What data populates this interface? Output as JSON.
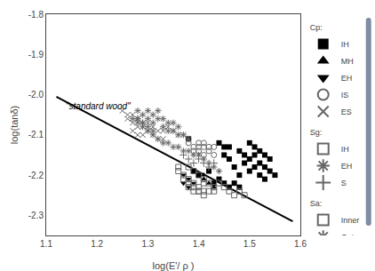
{
  "chart_data": {
    "type": "scatter",
    "xlabel": "log(E'/ ρ )",
    "ylabel": "log(tanδ)",
    "xlim": [
      1.1,
      1.6
    ],
    "ylim": [
      -2.35,
      -1.8
    ],
    "xticks": [
      1.1,
      1.2,
      1.3,
      1.4,
      1.5,
      1.6
    ],
    "yticks": [
      {
        "value": -2.3,
        "label": "-2.3"
      },
      {
        "value": -2.2,
        "label": "-2.2"
      },
      {
        "value": -2.1,
        "label": "-2.1"
      },
      {
        "value": -2.0,
        "label": "-2.0"
      },
      {
        "value": -1.9,
        "label": "-1.9"
      },
      {
        "value": -1.8,
        "label": "-1.8"
      }
    ],
    "grid": false,
    "legend": "right",
    "annotations": [
      {
        "text": "\"standard wood\"",
        "x": 1.135,
        "y": -2.045
      }
    ],
    "series": [
      {
        "type": "line",
        "color": "#000000",
        "line_style": "solid",
        "x": [
          1.12,
          1.585
        ],
        "values": [
          -2.005,
          -2.315
        ]
      },
      {
        "group": "Cp:",
        "name": "IH",
        "type": "scatter",
        "marker": "square",
        "color": "#000000",
        "x": [
          1.44,
          1.45,
          1.45,
          1.46,
          1.46,
          1.47,
          1.48,
          1.48,
          1.49,
          1.49,
          1.5,
          1.5,
          1.5,
          1.51,
          1.51,
          1.51,
          1.52,
          1.52,
          1.52,
          1.53,
          1.53,
          1.53,
          1.54,
          1.54,
          1.55,
          1.42,
          1.43,
          1.44,
          1.45,
          1.46,
          1.47,
          1.48,
          1.38,
          1.39,
          1.4
        ],
        "values": [
          -2.12,
          -2.13,
          -2.15,
          -2.13,
          -2.16,
          -2.18,
          -2.14,
          -2.2,
          -2.15,
          -2.17,
          -2.12,
          -2.16,
          -2.19,
          -2.13,
          -2.15,
          -2.18,
          -2.14,
          -2.17,
          -2.2,
          -2.15,
          -2.18,
          -2.21,
          -2.16,
          -2.19,
          -2.2,
          -2.19,
          -2.22,
          -2.21,
          -2.22,
          -2.23,
          -2.22,
          -2.23,
          -2.11,
          -2.19,
          -2.2
        ]
      },
      {
        "group": "Cp:",
        "name": "MH",
        "type": "scatter",
        "marker": "triangle-up",
        "color": "#000000",
        "x": [
          1.4,
          1.41,
          1.42,
          1.43,
          1.41
        ],
        "values": [
          -2.2,
          -2.21,
          -2.22,
          -2.23,
          -2.2
        ]
      },
      {
        "group": "Cp:",
        "name": "EH",
        "type": "scatter",
        "marker": "triangle-down",
        "color": "#000000",
        "x": [
          1.37,
          1.38,
          1.37,
          1.38,
          1.39
        ],
        "values": [
          -2.2,
          -2.21,
          -2.22,
          -2.23,
          -2.22
        ]
      },
      {
        "group": "Cp:",
        "name": "IS",
        "type": "scatter",
        "marker": "circle-open",
        "color": "#666666",
        "x": [
          1.38,
          1.39,
          1.39,
          1.4,
          1.4,
          1.4,
          1.41,
          1.41,
          1.41,
          1.42,
          1.42,
          1.43,
          1.43
        ],
        "values": [
          -2.12,
          -2.13,
          -2.14,
          -2.12,
          -2.13,
          -2.14,
          -2.12,
          -2.13,
          -2.15,
          -2.13,
          -2.14,
          -2.13,
          -2.15
        ]
      },
      {
        "group": "Cp:",
        "name": "ES",
        "type": "scatter",
        "marker": "x-thin-open",
        "color": "#666666",
        "x": [
          1.25,
          1.26,
          1.27,
          1.27,
          1.28,
          1.28,
          1.28,
          1.29,
          1.29,
          1.3,
          1.3,
          1.31,
          1.31,
          1.32,
          1.32,
          1.33,
          1.33,
          1.34,
          1.35,
          1.36,
          1.37,
          1.26,
          1.27
        ],
        "values": [
          -2.04,
          -2.06,
          -2.07,
          -2.09,
          -2.06,
          -2.08,
          -2.1,
          -2.08,
          -2.1,
          -2.07,
          -2.09,
          -2.08,
          -2.1,
          -2.09,
          -2.11,
          -2.09,
          -2.11,
          -2.08,
          -2.09,
          -2.1,
          -2.1,
          -2.05,
          -2.05
        ]
      },
      {
        "group": "Sg:",
        "name": "IH",
        "type": "scatter",
        "marker": "square-open",
        "color": "#666666",
        "x": [
          1.36,
          1.37,
          1.38,
          1.39,
          1.4,
          1.36,
          1.37,
          1.38,
          1.39,
          1.4,
          1.41,
          1.41
        ],
        "values": [
          -2.18,
          -2.2,
          -2.21,
          -2.22,
          -2.23,
          -2.19,
          -2.21,
          -2.22,
          -2.23,
          -2.24,
          -2.22,
          -2.24
        ]
      },
      {
        "group": "Sg:",
        "name": "EH",
        "type": "scatter",
        "marker": "asterisk-open",
        "color": "#666666",
        "x": [
          1.27,
          1.28,
          1.29,
          1.3,
          1.31,
          1.32,
          1.33,
          1.34,
          1.35,
          1.36,
          1.37,
          1.38,
          1.39,
          1.4,
          1.41,
          1.42,
          1.43,
          1.44,
          1.28,
          1.29,
          1.3,
          1.31
        ],
        "values": [
          -2.06,
          -2.07,
          -2.08,
          -2.09,
          -2.1,
          -2.11,
          -2.12,
          -2.12,
          -2.13,
          -2.13,
          -2.14,
          -2.14,
          -2.15,
          -2.15,
          -2.16,
          -2.17,
          -2.18,
          -2.19,
          -2.06,
          -2.07,
          -2.08,
          -2.09
        ]
      },
      {
        "group": "Sg:",
        "name": "S",
        "type": "scatter",
        "marker": "cross-thin-open",
        "color": "#666666",
        "x": [
          1.37,
          1.38,
          1.39,
          1.4,
          1.41,
          1.42,
          1.43
        ],
        "values": [
          -2.15,
          -2.16,
          -2.17,
          -2.16,
          -2.17,
          -2.18,
          -2.17
        ]
      },
      {
        "group": "Sa:",
        "name": "Inner",
        "type": "scatter",
        "marker": "square-open",
        "color": "#666666",
        "x": [
          1.38,
          1.39,
          1.4,
          1.41,
          1.42,
          1.43,
          1.44,
          1.45,
          1.46,
          1.47,
          1.48,
          1.49,
          1.38,
          1.39,
          1.4,
          1.41,
          1.42,
          1.43
        ],
        "values": [
          -2.18,
          -2.19,
          -2.2,
          -2.21,
          -2.22,
          -2.23,
          -2.22,
          -2.23,
          -2.24,
          -2.25,
          -2.24,
          -2.25,
          -2.23,
          -2.24,
          -2.24,
          -2.25,
          -2.24,
          -2.24
        ]
      },
      {
        "group": "Sa:",
        "name": "Outer",
        "type": "scatter",
        "marker": "asterisk-open",
        "color": "#666666",
        "x": [
          1.28,
          1.29,
          1.3,
          1.28,
          1.29,
          1.3,
          1.31,
          1.32,
          1.31,
          1.32,
          1.33,
          1.34,
          1.35,
          1.33,
          1.34,
          1.35,
          1.36,
          1.36,
          1.37,
          1.38
        ],
        "values": [
          -2.04,
          -2.05,
          -2.04,
          -2.06,
          -2.07,
          -2.06,
          -2.05,
          -2.04,
          -2.07,
          -2.06,
          -2.06,
          -2.07,
          -2.07,
          -2.08,
          -2.09,
          -2.09,
          -2.08,
          -2.1,
          -2.1,
          -2.11
        ]
      }
    ]
  }
}
